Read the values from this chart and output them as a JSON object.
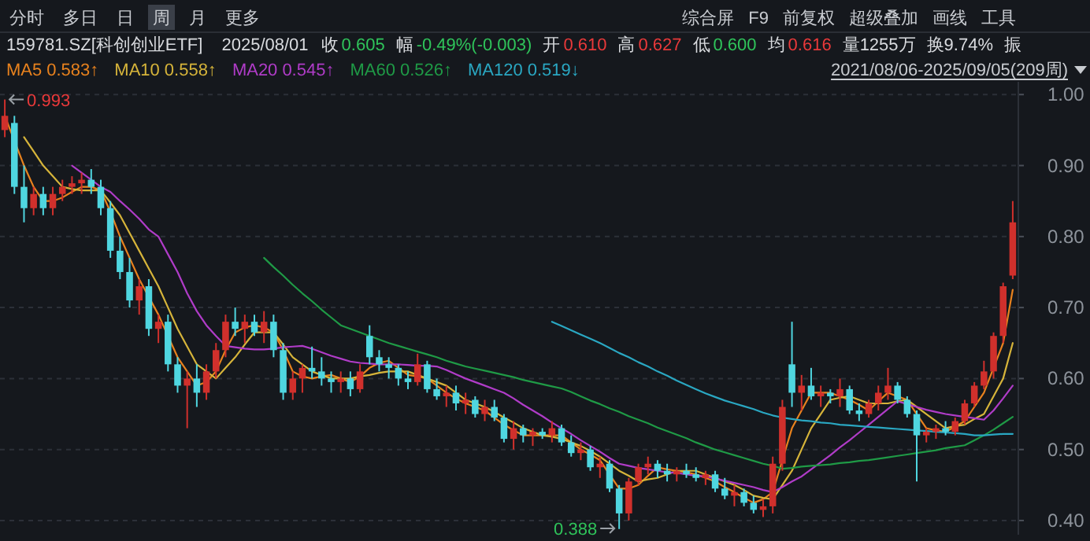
{
  "chart_data": {
    "type": "candlestick",
    "title": "159781.SZ[科创创业ETF]",
    "subtitle": "2025/08/01",
    "annotations": [
      "分时",
      "多日",
      "日",
      "周",
      "月",
      "更多",
      "综合屏",
      "F9",
      "前复权",
      "超级叠加",
      "画线",
      "工具",
      "收",
      "0.605",
      "幅",
      "-0.49%(-0.003)",
      "开",
      "0.610",
      "高",
      "0.627",
      "低",
      "0.600",
      "均",
      "0.616",
      "量1255万",
      "换9.74%",
      "振",
      "0.583↑",
      "0.558↑",
      "0.545↑",
      "0.526↑",
      "0.519↓",
      "2021/08/06-2025/09/05(209周)",
      "0.993",
      "0.388"
    ],
    "categories": [
      null,
      null,
      null,
      null,
      null,
      null,
      null,
      null,
      null,
      null,
      null,
      null,
      null,
      null,
      null,
      null,
      null,
      null,
      null,
      null,
      null,
      null,
      null,
      null,
      null,
      null,
      null,
      null,
      null,
      null,
      null,
      null,
      null,
      null,
      null,
      null,
      null,
      null,
      null,
      null,
      null,
      null,
      null,
      null,
      null,
      null,
      null,
      null,
      null,
      null,
      null,
      null,
      null,
      null,
      null,
      null,
      null,
      null,
      null,
      null,
      null,
      null,
      null,
      null,
      null,
      null,
      null,
      null,
      null,
      null,
      null,
      null,
      null,
      null,
      null,
      null,
      null,
      null,
      null,
      null,
      null,
      null,
      null,
      null,
      null,
      null,
      null,
      null,
      null,
      null,
      null,
      null,
      null,
      null,
      null,
      null,
      null,
      null,
      null,
      null,
      null,
      null,
      null,
      null,
      null,
      null
    ],
    "ohlc": [
      [
        0.95,
        0.993,
        0.94,
        0.97
      ],
      [
        0.96,
        0.97,
        0.86,
        0.87
      ],
      [
        0.87,
        0.9,
        0.82,
        0.84
      ],
      [
        0.84,
        0.87,
        0.83,
        0.86
      ],
      [
        0.86,
        0.87,
        0.83,
        0.84
      ],
      [
        0.84,
        0.87,
        0.83,
        0.86
      ],
      [
        0.86,
        0.88,
        0.85,
        0.87
      ],
      [
        0.87,
        0.885,
        0.86,
        0.875
      ],
      [
        0.875,
        0.89,
        0.86,
        0.88
      ],
      [
        0.88,
        0.895,
        0.86,
        0.87
      ],
      [
        0.87,
        0.88,
        0.83,
        0.84
      ],
      [
        0.84,
        0.85,
        0.77,
        0.78
      ],
      [
        0.78,
        0.8,
        0.74,
        0.75
      ],
      [
        0.75,
        0.77,
        0.7,
        0.71
      ],
      [
        0.71,
        0.74,
        0.69,
        0.73
      ],
      [
        0.73,
        0.74,
        0.66,
        0.67
      ],
      [
        0.67,
        0.69,
        0.65,
        0.68
      ],
      [
        0.68,
        0.69,
        0.61,
        0.62
      ],
      [
        0.62,
        0.63,
        0.58,
        0.59
      ],
      [
        0.59,
        0.61,
        0.53,
        0.6
      ],
      [
        0.6,
        0.62,
        0.56,
        0.58
      ],
      [
        0.58,
        0.62,
        0.57,
        0.61
      ],
      [
        0.61,
        0.65,
        0.6,
        0.64
      ],
      [
        0.64,
        0.69,
        0.63,
        0.68
      ],
      [
        0.68,
        0.7,
        0.66,
        0.67
      ],
      [
        0.67,
        0.69,
        0.65,
        0.68
      ],
      [
        0.68,
        0.69,
        0.66,
        0.665
      ],
      [
        0.665,
        0.695,
        0.65,
        0.68
      ],
      [
        0.68,
        0.69,
        0.63,
        0.64
      ],
      [
        0.64,
        0.65,
        0.57,
        0.58
      ],
      [
        0.58,
        0.61,
        0.57,
        0.6
      ],
      [
        0.6,
        0.62,
        0.58,
        0.615
      ],
      [
        0.615,
        0.645,
        0.6,
        0.61
      ],
      [
        0.61,
        0.63,
        0.59,
        0.6
      ],
      [
        0.6,
        0.61,
        0.58,
        0.595
      ],
      [
        0.595,
        0.61,
        0.58,
        0.6
      ],
      [
        0.6,
        0.61,
        0.575,
        0.585
      ],
      [
        0.585,
        0.62,
        0.58,
        0.61
      ],
      [
        0.66,
        0.675,
        0.62,
        0.63
      ],
      [
        0.63,
        0.64,
        0.61,
        0.62
      ],
      [
        0.62,
        0.63,
        0.6,
        0.615
      ],
      [
        0.615,
        0.62,
        0.59,
        0.6
      ],
      [
        0.6,
        0.61,
        0.585,
        0.595
      ],
      [
        0.595,
        0.635,
        0.59,
        0.62
      ],
      [
        0.62,
        0.625,
        0.58,
        0.585
      ],
      [
        0.585,
        0.6,
        0.57,
        0.575
      ],
      [
        0.575,
        0.59,
        0.56,
        0.58
      ],
      [
        0.58,
        0.59,
        0.555,
        0.565
      ],
      [
        0.565,
        0.58,
        0.55,
        0.57
      ],
      [
        0.57,
        0.575,
        0.545,
        0.55
      ],
      [
        0.55,
        0.57,
        0.54,
        0.56
      ],
      [
        0.56,
        0.57,
        0.54,
        0.545
      ],
      [
        0.545,
        0.55,
        0.51,
        0.515
      ],
      [
        0.515,
        0.54,
        0.5,
        0.53
      ],
      [
        0.53,
        0.535,
        0.51,
        0.52
      ],
      [
        0.52,
        0.53,
        0.505,
        0.525
      ],
      [
        0.525,
        0.53,
        0.515,
        0.52
      ],
      [
        0.52,
        0.54,
        0.51,
        0.53
      ],
      [
        0.53,
        0.535,
        0.505,
        0.51
      ],
      [
        0.51,
        0.52,
        0.49,
        0.495
      ],
      [
        0.495,
        0.51,
        0.485,
        0.5
      ],
      [
        0.5,
        0.505,
        0.47,
        0.475
      ],
      [
        0.475,
        0.49,
        0.46,
        0.48
      ],
      [
        0.48,
        0.485,
        0.44,
        0.445
      ],
      [
        0.445,
        0.45,
        0.388,
        0.41
      ],
      [
        0.41,
        0.46,
        0.4,
        0.455
      ],
      [
        0.455,
        0.48,
        0.45,
        0.475
      ],
      [
        0.475,
        0.49,
        0.465,
        0.48
      ],
      [
        0.48,
        0.485,
        0.46,
        0.47
      ],
      [
        0.47,
        0.48,
        0.455,
        0.465
      ],
      [
        0.465,
        0.475,
        0.455,
        0.47
      ],
      [
        0.47,
        0.48,
        0.46,
        0.465
      ],
      [
        0.465,
        0.475,
        0.455,
        0.46
      ],
      [
        0.46,
        0.47,
        0.45,
        0.465
      ],
      [
        0.465,
        0.47,
        0.44,
        0.445
      ],
      [
        0.445,
        0.46,
        0.43,
        0.435
      ],
      [
        0.435,
        0.45,
        0.42,
        0.44
      ],
      [
        0.44,
        0.445,
        0.42,
        0.425
      ],
      [
        0.425,
        0.435,
        0.41,
        0.415
      ],
      [
        0.415,
        0.43,
        0.405,
        0.42
      ],
      [
        0.42,
        0.49,
        0.41,
        0.48
      ],
      [
        0.48,
        0.57,
        0.47,
        0.56
      ],
      [
        0.62,
        0.68,
        0.56,
        0.58
      ],
      [
        0.58,
        0.605,
        0.555,
        0.59
      ],
      [
        0.59,
        0.615,
        0.57,
        0.575
      ],
      [
        0.575,
        0.59,
        0.56,
        0.58
      ],
      [
        0.58,
        0.585,
        0.565,
        0.575
      ],
      [
        0.575,
        0.6,
        0.56,
        0.585
      ],
      [
        0.585,
        0.59,
        0.55,
        0.555
      ],
      [
        0.555,
        0.565,
        0.54,
        0.55
      ],
      [
        0.55,
        0.57,
        0.545,
        0.565
      ],
      [
        0.565,
        0.59,
        0.555,
        0.58
      ],
      [
        0.58,
        0.615,
        0.57,
        0.59
      ],
      [
        0.59,
        0.595,
        0.565,
        0.57
      ],
      [
        0.57,
        0.575,
        0.545,
        0.55
      ],
      [
        0.55,
        0.555,
        0.455,
        0.52
      ],
      [
        0.52,
        0.53,
        0.51,
        0.525
      ],
      [
        0.525,
        0.535,
        0.515,
        0.53
      ],
      [
        0.53,
        0.54,
        0.52,
        0.525
      ],
      [
        0.525,
        0.545,
        0.52,
        0.54
      ],
      [
        0.54,
        0.57,
        0.535,
        0.565
      ],
      [
        0.565,
        0.595,
        0.56,
        0.59
      ],
      [
        0.59,
        0.625,
        0.585,
        0.61
      ],
      [
        0.61,
        0.665,
        0.6,
        0.66
      ],
      [
        0.66,
        0.735,
        0.65,
        0.73
      ],
      [
        0.745,
        0.85,
        0.74,
        0.82
      ]
    ],
    "colors": [
      "#d0302c",
      "#4fd6e0",
      "#4fd6e0",
      "#d0302c",
      "#4fd6e0",
      "#d0302c",
      "#d0302c",
      "#d0302c",
      "#d0302c",
      "#4fd6e0",
      "#4fd6e0",
      "#4fd6e0",
      "#4fd6e0",
      "#4fd6e0",
      "#d0302c",
      "#4fd6e0",
      "#d0302c",
      "#4fd6e0",
      "#4fd6e0",
      "#d0302c",
      "#4fd6e0",
      "#d0302c",
      "#d0302c",
      "#d0302c",
      "#4fd6e0",
      "#d0302c",
      "#4fd6e0",
      "#d0302c",
      "#4fd6e0",
      "#4fd6e0",
      "#d0302c",
      "#d0302c",
      "#4fd6e0",
      "#4fd6e0",
      "#4fd6e0",
      "#d0302c",
      "#4fd6e0",
      "#d0302c",
      "#4fd6e0",
      "#4fd6e0",
      "#4fd6e0",
      "#4fd6e0",
      "#4fd6e0",
      "#d0302c",
      "#4fd6e0",
      "#4fd6e0",
      "#d0302c",
      "#4fd6e0",
      "#d0302c",
      "#4fd6e0",
      "#d0302c",
      "#4fd6e0",
      "#4fd6e0",
      "#d0302c",
      "#4fd6e0",
      "#d0302c",
      "#4fd6e0",
      "#d0302c",
      "#4fd6e0",
      "#4fd6e0",
      "#d0302c",
      "#4fd6e0",
      "#d0302c",
      "#4fd6e0",
      "#4fd6e0",
      "#d0302c",
      "#d0302c",
      "#d0302c",
      "#4fd6e0",
      "#4fd6e0",
      "#d0302c",
      "#4fd6e0",
      "#4fd6e0",
      "#d0302c",
      "#4fd6e0",
      "#4fd6e0",
      "#d0302c",
      "#4fd6e0",
      "#4fd6e0",
      "#d0302c",
      "#d0302c",
      "#d0302c",
      "#4fd6e0",
      "#d0302c",
      "#4fd6e0",
      "#d0302c",
      "#4fd6e0",
      "#d0302c",
      "#4fd6e0",
      "#4fd6e0",
      "#d0302c",
      "#d0302c",
      "#d0302c",
      "#4fd6e0",
      "#4fd6e0",
      "#4fd6e0",
      "#d0302c",
      "#d0302c",
      "#4fd6e0",
      "#d0302c",
      "#d0302c",
      "#d0302c",
      "#d0302c",
      "#d0302c",
      "#d0302c",
      "#d0302c"
    ],
    "series": [
      {
        "name": "MA5",
        "type": "line",
        "color": "#e8821e",
        "values": [
          0.97,
          null,
          0.9,
          0.87,
          0.85,
          0.85,
          0.855,
          0.863,
          0.87,
          0.87,
          0.865,
          0.835,
          0.8,
          0.77,
          0.74,
          0.715,
          0.69,
          null,
          0.63,
          0.61,
          0.59,
          0.595,
          0.61,
          0.64,
          0.665,
          0.672,
          0.675,
          0.672,
          0.665,
          0.64,
          0.61,
          0.603,
          0.6,
          0.603,
          0.605,
          0.6,
          0.595,
          0.603,
          0.615,
          0.622,
          0.625,
          0.615,
          0.605,
          0.603,
          0.6,
          0.59,
          0.58,
          0.572,
          0.565,
          0.56,
          0.555,
          0.545,
          0.535,
          0.527,
          0.52,
          0.52,
          0.52,
          0.52,
          0.52,
          0.51,
          0.5,
          0.493,
          0.485,
          0.465,
          0.445,
          0.445,
          0.45,
          0.463,
          0.475,
          0.472,
          0.47,
          0.468,
          0.465,
          0.46,
          0.455,
          0.447,
          0.44,
          0.432,
          0.425,
          0.43,
          0.44,
          0.485,
          0.53,
          0.555,
          0.58,
          0.58,
          0.58,
          0.575,
          0.57,
          0.563,
          0.555,
          0.568,
          0.58,
          0.575,
          0.57,
          0.55,
          0.53,
          0.527,
          0.525,
          0.532,
          0.54,
          0.56,
          0.58,
          0.615,
          0.65,
          0.725
        ]
      },
      {
        "name": "MA10",
        "type": "line",
        "color": "#d6b43a",
        "values": [
          null,
          null,
          0.94,
          0.92,
          0.9,
          0.885,
          0.87,
          0.867,
          0.865,
          0.865,
          0.865,
          0.848,
          0.83,
          0.805,
          0.78,
          0.755,
          0.73,
          0.7,
          0.67,
          0.645,
          0.62,
          0.61,
          0.6,
          0.615,
          0.63,
          0.648,
          0.665,
          0.665,
          0.665,
          0.648,
          0.63,
          0.62,
          0.61,
          0.605,
          0.6,
          0.6,
          0.6,
          0.603,
          0.605,
          0.608,
          0.61,
          0.61,
          0.61,
          0.605,
          0.6,
          0.595,
          0.59,
          0.58,
          0.57,
          0.565,
          0.56,
          0.553,
          0.545,
          0.538,
          0.53,
          0.525,
          0.52,
          0.518,
          0.515,
          0.51,
          0.505,
          0.498,
          0.49,
          0.48,
          0.47,
          0.463,
          0.455,
          0.458,
          0.46,
          0.465,
          0.47,
          0.47,
          0.47,
          0.465,
          0.46,
          0.455,
          0.45,
          0.443,
          0.435,
          0.432,
          0.43,
          0.45,
          0.47,
          0.5,
          0.53,
          0.55,
          0.57,
          0.573,
          0.575,
          0.57,
          0.565,
          0.565,
          0.565,
          0.568,
          0.57,
          0.56,
          0.55,
          0.54,
          0.53,
          0.533,
          0.535,
          0.543,
          0.55,
          0.575,
          0.6,
          0.65
        ]
      },
      {
        "name": "MA20",
        "type": "line",
        "color": "#b03cc8",
        "values": [
          null,
          null,
          null,
          null,
          null,
          null,
          null,
          0.9,
          0.89,
          0.88,
          0.87,
          0.863,
          0.85,
          0.838,
          0.825,
          0.81,
          0.8,
          0.775,
          0.75,
          0.72,
          0.695,
          0.675,
          0.66,
          0.646,
          0.644,
          0.642,
          0.641,
          0.641,
          0.642,
          0.644,
          0.645,
          0.646,
          0.642,
          0.637,
          0.632,
          0.628,
          0.624,
          0.622,
          0.621,
          0.62,
          0.62,
          0.62,
          0.619,
          0.618,
          0.618,
          0.617,
          0.612,
          0.606,
          0.6,
          0.595,
          0.59,
          0.585,
          0.58,
          0.572,
          0.563,
          0.555,
          0.547,
          0.538,
          0.53,
          0.522,
          0.513,
          0.505,
          0.497,
          0.488,
          0.48,
          0.477,
          0.474,
          0.472,
          0.47,
          0.468,
          0.467,
          0.465,
          0.463,
          0.462,
          0.459,
          0.456,
          0.453,
          0.45,
          0.447,
          0.443,
          0.44,
          0.447,
          0.455,
          0.462,
          0.472,
          0.482,
          0.492,
          0.503,
          0.513,
          0.524,
          0.535,
          0.546,
          0.557,
          0.568,
          0.564,
          0.56,
          0.556,
          0.553,
          0.55,
          0.548,
          0.546,
          0.544,
          0.542,
          0.555,
          0.572,
          0.59
        ]
      },
      {
        "name": "MA60",
        "type": "line",
        "color": "#1f9a46",
        "values": [
          null,
          null,
          null,
          null,
          null,
          null,
          null,
          null,
          null,
          null,
          null,
          null,
          null,
          null,
          null,
          null,
          null,
          null,
          null,
          null,
          null,
          null,
          null,
          null,
          null,
          null,
          null,
          0.77,
          0.757,
          0.745,
          0.732,
          0.72,
          0.709,
          0.697,
          0.686,
          0.675,
          0.67,
          0.665,
          0.66,
          0.655,
          0.65,
          0.646,
          0.642,
          0.638,
          0.634,
          0.63,
          0.625,
          0.621,
          0.617,
          0.614,
          0.611,
          0.608,
          0.605,
          0.602,
          0.598,
          0.595,
          0.592,
          0.589,
          0.586,
          0.581,
          0.575,
          0.569,
          0.564,
          0.558,
          0.553,
          0.547,
          0.542,
          0.537,
          0.531,
          0.526,
          0.521,
          0.516,
          0.51,
          0.505,
          0.5,
          0.496,
          0.492,
          0.488,
          0.484,
          0.48,
          0.477,
          0.473,
          0.474,
          0.476,
          0.477,
          0.478,
          0.479,
          0.481,
          0.482,
          0.484,
          0.485,
          0.487,
          0.489,
          0.491,
          0.493,
          0.495,
          0.497,
          0.499,
          0.502,
          0.504,
          0.506,
          0.513,
          0.52,
          0.528,
          0.537,
          0.546
        ]
      },
      {
        "name": "MA120",
        "type": "line",
        "color": "#2aa7c2",
        "values": [
          null,
          null,
          null,
          null,
          null,
          null,
          null,
          null,
          null,
          null,
          null,
          null,
          null,
          null,
          null,
          null,
          null,
          null,
          null,
          null,
          null,
          null,
          null,
          null,
          null,
          null,
          null,
          null,
          null,
          null,
          null,
          null,
          null,
          null,
          null,
          null,
          null,
          null,
          null,
          null,
          null,
          null,
          null,
          null,
          null,
          null,
          null,
          null,
          null,
          null,
          null,
          null,
          null,
          null,
          null,
          null,
          null,
          0.68,
          0.674,
          0.668,
          0.662,
          0.656,
          0.65,
          0.643,
          0.636,
          0.63,
          0.623,
          0.617,
          0.61,
          0.604,
          0.597,
          0.591,
          0.585,
          0.579,
          0.574,
          0.569,
          0.565,
          0.561,
          0.557,
          0.552,
          0.548,
          0.545,
          0.543,
          0.541,
          0.54,
          0.538,
          0.537,
          0.535,
          0.534,
          0.533,
          0.532,
          0.531,
          0.53,
          0.529,
          0.528,
          0.527,
          0.526,
          0.525,
          0.524,
          0.523,
          0.522,
          0.52,
          0.52,
          0.521,
          0.522,
          0.522
        ]
      }
    ],
    "ylim": [
      0.38,
      1.018
    ],
    "yticks": [
      {
        "value": 0.4,
        "label": "0.40"
      },
      {
        "value": 0.5,
        "label": "0.50"
      },
      {
        "value": 0.6,
        "label": "0.60"
      },
      {
        "value": 0.7,
        "label": "0.70"
      },
      {
        "value": 0.8,
        "label": "0.80"
      },
      {
        "value": 0.9,
        "label": "0.90"
      },
      {
        "value": 1.0,
        "label": "1.00"
      }
    ],
    "grid": "y",
    "legend": "top left",
    "tick_labels": "y"
  }
}
